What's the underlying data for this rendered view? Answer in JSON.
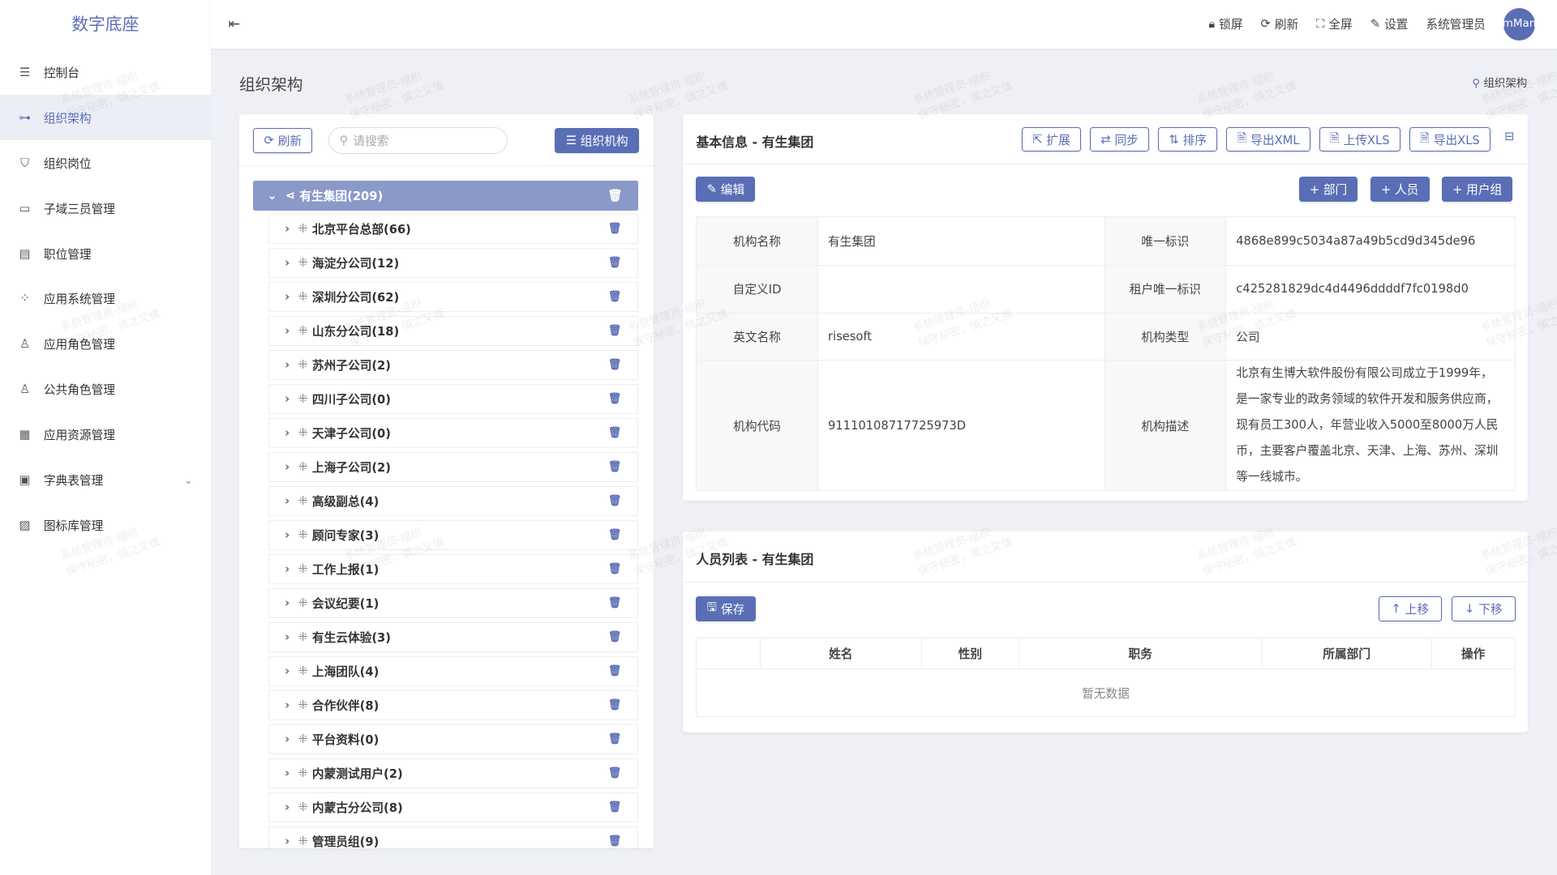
{
  "app": {
    "title": "数字底座",
    "collapse_icon": "menu-fold-icon"
  },
  "sidebar": {
    "items": [
      {
        "label": "控制台",
        "icon": "sliders-icon"
      },
      {
        "label": "组织架构",
        "icon": "org-tree-icon",
        "active": true
      },
      {
        "label": "组织岗位",
        "icon": "badge-icon"
      },
      {
        "label": "子域三员管理",
        "icon": "window-icon"
      },
      {
        "label": "职位管理",
        "icon": "id-card-icon"
      },
      {
        "label": "应用系统管理",
        "icon": "apps-icon"
      },
      {
        "label": "应用角色管理",
        "icon": "user-role-icon"
      },
      {
        "label": "公共角色管理",
        "icon": "users-icon"
      },
      {
        "label": "应用资源管理",
        "icon": "grid-icon"
      },
      {
        "label": "字典表管理",
        "icon": "book-icon",
        "has_children": true
      },
      {
        "label": "图标库管理",
        "icon": "image-icon"
      }
    ]
  },
  "topbar": {
    "lock": "锁屏",
    "refresh": "刷新",
    "fullscreen": "全屏",
    "settings": "设置",
    "user": "系统管理员",
    "avatar": "mMan"
  },
  "page": {
    "title": "组织架构",
    "breadcrumb": "组织架构"
  },
  "tree_panel": {
    "refresh": "刷新",
    "search_placeholder": "请搜索",
    "org_button": "组织机构",
    "root": "有生集团(209)",
    "items": [
      "北京平台总部(66)",
      "海淀分公司(12)",
      "深圳分公司(62)",
      "山东分公司(18)",
      "苏州子公司(2)",
      "四川子公司(0)",
      "天津子公司(0)",
      "上海子公司(2)",
      "高级副总(4)",
      "顾问专家(3)",
      "工作上报(1)",
      "会议纪要(1)",
      "有生云体验(3)",
      "上海团队(4)",
      "合作伙伴(8)",
      "平台资料(0)",
      "内蒙测试用户(2)",
      "内蒙古分公司(8)",
      "管理员组(9)"
    ]
  },
  "info": {
    "title": "基本信息 - 有生集团",
    "actions": [
      "扩展",
      "同步",
      "排序",
      "导出XML",
      "上传XLS",
      "导出XLS"
    ],
    "edit": "编辑",
    "add_dept": "+ 部门",
    "add_person": "+ 人员",
    "add_group": "+ 用户组",
    "fields": {
      "name_label": "机构名称",
      "name": "有生集团",
      "uid_label": "唯一标识",
      "uid": "4868e899c5034a87a49b5cd9d345de96",
      "custom_id_label": "自定义ID",
      "custom_id": "",
      "tenant_label": "租户唯一标识",
      "tenant": "c425281829dc4d4496ddddf7fc0198d0",
      "en_label": "英文名称",
      "en": "risesoft",
      "type_label": "机构类型",
      "type": "公司",
      "code_label": "机构代码",
      "code": "91110108717725973D",
      "desc_label": "机构描述",
      "desc": "北京有生博大软件股份有限公司成立于1999年，是一家专业的政务领域的软件开发和服务供应商，现有员工300人，年营业收入5000至8000万人民币，主要客户覆盖北京、天津、上海、苏州、深圳等一线城市。"
    }
  },
  "people": {
    "title": "人员列表 - 有生集团",
    "save": "保存",
    "up": "上移",
    "down": "下移",
    "columns": [
      "",
      "姓名",
      "性别",
      "职务",
      "所属部门",
      "操作"
    ],
    "empty": "暂无数据"
  },
  "watermark": "系统管理员-组织 保守秘密，慎之又慎",
  "colors": {
    "primary": "#5a6eb5",
    "tree_root": "#8a99c8",
    "background": "#eef0f6"
  }
}
